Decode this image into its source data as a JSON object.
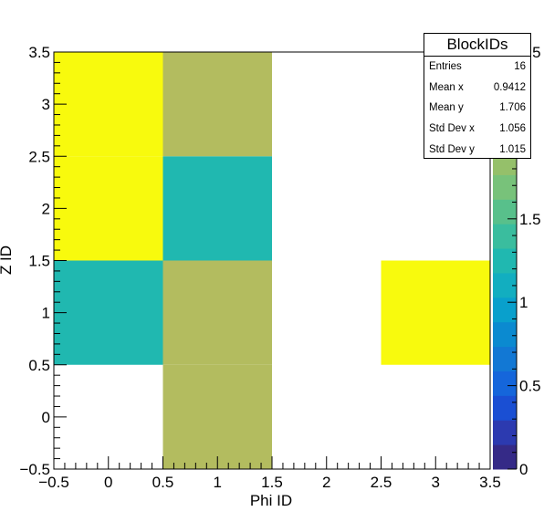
{
  "chart_data": {
    "type": "heatmap",
    "title": "",
    "xlabel": "Phi ID",
    "ylabel": "Z ID",
    "xlim": [
      -0.5,
      3.5
    ],
    "ylim": [
      -0.5,
      3.5
    ],
    "zlim": [
      0,
      2.5
    ],
    "x_ticks": [
      "−0.5",
      "0",
      "0.5",
      "1",
      "1.5",
      "2",
      "2.5",
      "3",
      "3.5"
    ],
    "y_ticks": [
      "−0.5",
      "0",
      "0.5",
      "1",
      "1.5",
      "2",
      "2.5",
      "3",
      "3.5"
    ],
    "z_ticks": [
      "0",
      "0.5",
      "1",
      "1.5",
      "2",
      "2.5"
    ],
    "cells": [
      {
        "x": 0,
        "y": 1,
        "value": 1.2
      },
      {
        "x": 0,
        "y": 2,
        "value": 2.5
      },
      {
        "x": 0,
        "y": 3,
        "value": 2.5
      },
      {
        "x": 1,
        "y": 0,
        "value": 2.0
      },
      {
        "x": 1,
        "y": 1,
        "value": 2.0
      },
      {
        "x": 1,
        "y": 2,
        "value": 1.2
      },
      {
        "x": 1,
        "y": 3,
        "value": 2.0
      },
      {
        "x": 3,
        "y": 1,
        "value": 2.5
      }
    ],
    "palette": [
      "#352a87",
      "#2c3ab0",
      "#1a4fd3",
      "#1566db",
      "#1278d4",
      "#0b8ad0",
      "#09a0cc",
      "#12aec0",
      "#20b8b0",
      "#3abd9e",
      "#58c08b",
      "#78c27a",
      "#95c06a",
      "#b3bc5f",
      "#cdba50",
      "#e3b83f",
      "#f7ba30"
    ],
    "overflow_color": "#f8fa0d",
    "legend": "right",
    "grid": false
  },
  "stats": {
    "title": "BlockIDs",
    "rows": [
      {
        "label": "Entries",
        "value": "16"
      },
      {
        "label": "Mean x",
        "value": "0.9412"
      },
      {
        "label": "Mean y",
        "value": "1.706"
      },
      {
        "label": "Std Dev x",
        "value": "1.056"
      },
      {
        "label": "Std Dev y",
        "value": "1.015"
      }
    ]
  }
}
